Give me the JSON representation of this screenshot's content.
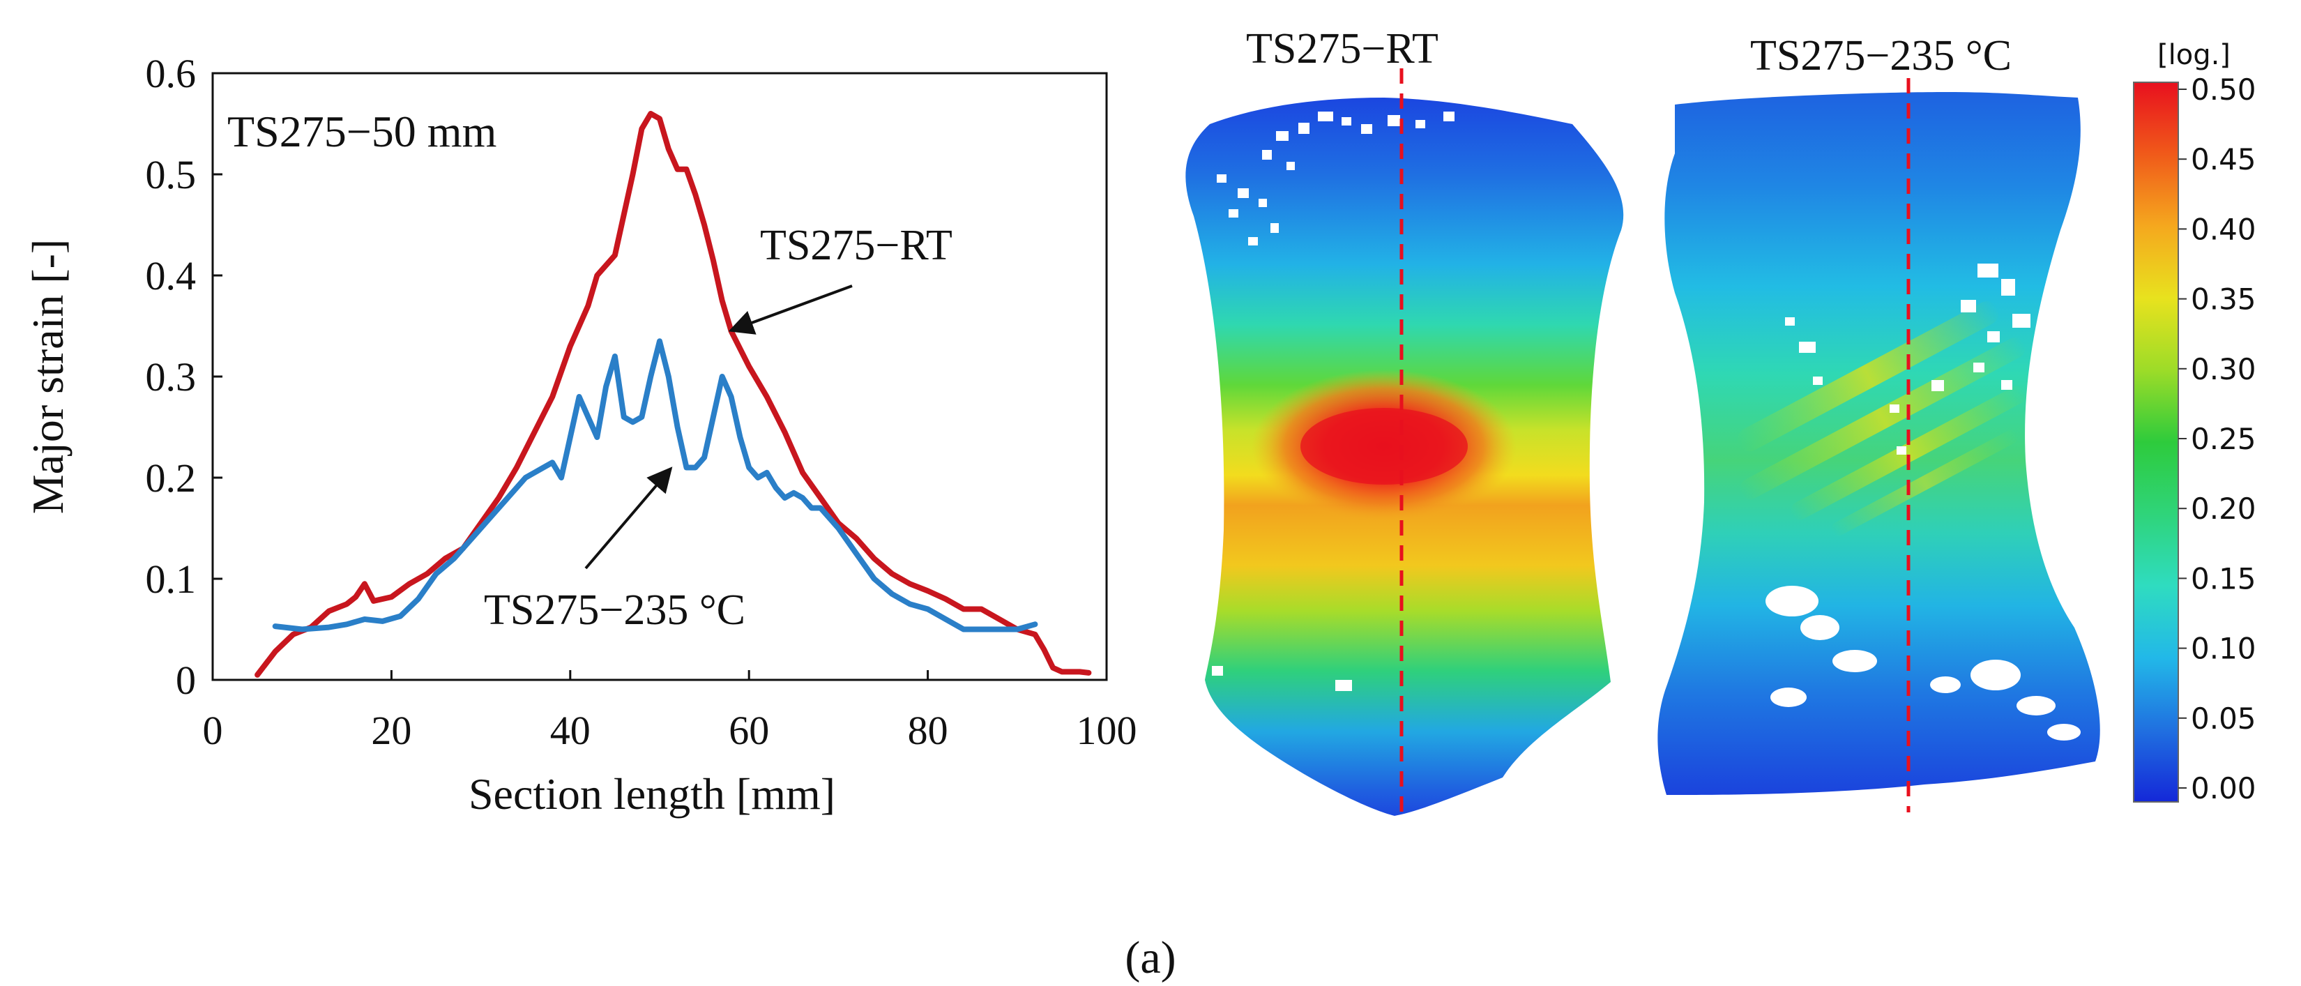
{
  "chart_data": [
    {
      "type": "line",
      "title": "",
      "inset_label": "TS275−50 mm",
      "xlabel": "Section length [mm]",
      "ylabel": "Major strain [-]",
      "xlim": [
        0,
        100
      ],
      "ylim": [
        0,
        0.6
      ],
      "xticks": [
        "0",
        "20",
        "40",
        "60",
        "80",
        "100"
      ],
      "yticks": [
        "0",
        "0.1",
        "0.2",
        "0.3",
        "0.4",
        "0.5",
        "0.6"
      ],
      "grid": false,
      "series": [
        {
          "name": "TS275−RT",
          "color": "#c8161e",
          "x": [
            5,
            7,
            9,
            11,
            13,
            15,
            16,
            17,
            18,
            20,
            22,
            24,
            26,
            28,
            30,
            32,
            34,
            36,
            38,
            40,
            42,
            43,
            44,
            45,
            46,
            47,
            48,
            49,
            50,
            51,
            52,
            53,
            54,
            55,
            56,
            57,
            58,
            60,
            62,
            64,
            66,
            68,
            70,
            72,
            74,
            76,
            78,
            80,
            82,
            84,
            86,
            88,
            90,
            92,
            93,
            94,
            95,
            96,
            97,
            98
          ],
          "values": [
            0.005,
            0.028,
            0.045,
            0.052,
            0.068,
            0.075,
            0.082,
            0.095,
            0.078,
            0.082,
            0.095,
            0.105,
            0.12,
            0.13,
            0.155,
            0.18,
            0.21,
            0.245,
            0.28,
            0.33,
            0.37,
            0.4,
            0.41,
            0.42,
            0.46,
            0.5,
            0.545,
            0.56,
            0.555,
            0.525,
            0.505,
            0.505,
            0.48,
            0.45,
            0.415,
            0.375,
            0.345,
            0.31,
            0.28,
            0.245,
            0.205,
            0.18,
            0.155,
            0.14,
            0.12,
            0.105,
            0.095,
            0.088,
            0.08,
            0.07,
            0.07,
            0.06,
            0.05,
            0.045,
            0.03,
            0.012,
            0.008,
            0.008,
            0.008,
            0.007
          ]
        },
        {
          "name": "TS275−235 °C",
          "color": "#2a7fc8",
          "x": [
            7,
            10,
            13,
            15,
            17,
            19,
            21,
            23,
            25,
            27,
            29,
            31,
            33,
            35,
            37,
            38,
            39,
            40,
            41,
            42,
            43,
            44,
            45,
            46,
            47,
            48,
            49,
            50,
            51,
            52,
            53,
            54,
            55,
            56,
            57,
            58,
            59,
            60,
            61,
            62,
            63,
            64,
            65,
            66,
            67,
            68,
            69,
            70,
            72,
            74,
            76,
            78,
            80,
            82,
            84,
            86,
            88,
            90,
            92
          ],
          "values": [
            0.053,
            0.05,
            0.052,
            0.055,
            0.06,
            0.058,
            0.063,
            0.08,
            0.105,
            0.12,
            0.14,
            0.16,
            0.18,
            0.2,
            0.21,
            0.215,
            0.2,
            0.24,
            0.28,
            0.26,
            0.24,
            0.29,
            0.32,
            0.26,
            0.255,
            0.26,
            0.3,
            0.335,
            0.3,
            0.25,
            0.21,
            0.21,
            0.22,
            0.26,
            0.3,
            0.28,
            0.24,
            0.21,
            0.2,
            0.205,
            0.19,
            0.18,
            0.185,
            0.18,
            0.17,
            0.17,
            0.16,
            0.15,
            0.125,
            0.1,
            0.085,
            0.075,
            0.07,
            0.06,
            0.05,
            0.05,
            0.05,
            0.05,
            0.055
          ]
        }
      ],
      "annotations": [
        {
          "text": "TS275−RT",
          "points_to_x": 57,
          "points_to_y": 0.345
        },
        {
          "text": "TS275−235 °C",
          "points_to_x": 52,
          "points_to_y": 0.215
        }
      ]
    },
    {
      "type": "heatmap",
      "description_labels": [
        "TS275−RT",
        "TS275−235 °C"
      ],
      "colorbar": {
        "title": "[log.]",
        "min": 0.0,
        "max": 0.5,
        "ticks": [
          "0.50",
          "0.45",
          "0.40",
          "0.35",
          "0.30",
          "0.25",
          "0.20",
          "0.15",
          "0.10",
          "0.05",
          "0.00"
        ],
        "colors": [
          "#e8101e",
          "#f05a1a",
          "#f5a81e",
          "#e8e21e",
          "#9ddc28",
          "#2ecb3c",
          "#2fd47a",
          "#2fdcc0",
          "#22b8e8",
          "#2070e0",
          "#1428d8"
        ]
      },
      "section_line_color": "#e8101e"
    }
  ],
  "caption": "(a)"
}
